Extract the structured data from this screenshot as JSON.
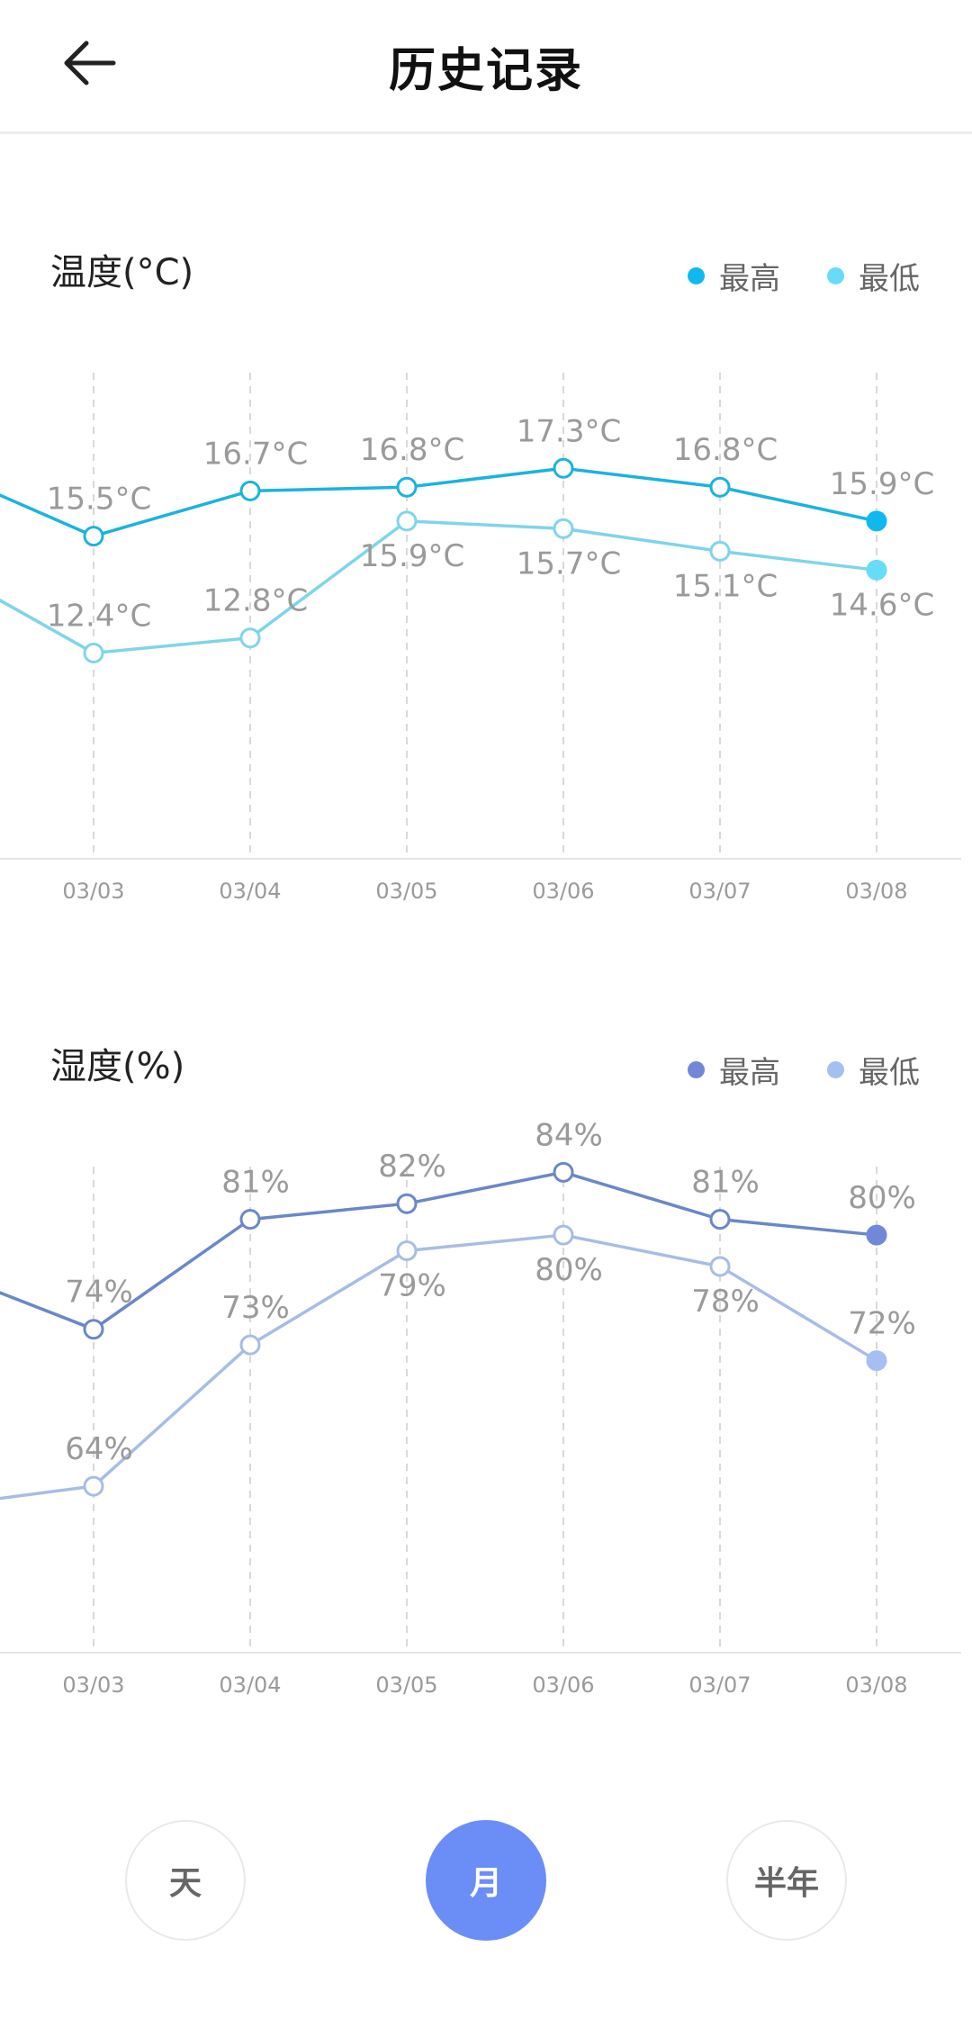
{
  "header": {
    "title": "历史记录"
  },
  "colors": {
    "temp_high": "#1ab3de",
    "temp_low": "#7fd4ec",
    "temp_high_legend": "#10b8f0",
    "temp_low_legend": "#66dcf7",
    "hum_high": "#6a87c8",
    "hum_low": "#a7bde4",
    "hum_high_legend": "#7188d8",
    "hum_low_legend": "#a6bff2",
    "active_button": "#6b8ef6"
  },
  "temperature": {
    "title": "温度(°C)",
    "legend": {
      "high": "最高",
      "low": "最低"
    }
  },
  "humidity": {
    "title": "湿度(%)",
    "legend": {
      "high": "最高",
      "low": "最低"
    }
  },
  "chart_data": [
    {
      "type": "line",
      "title": "温度(°C)",
      "categories": [
        "03/03",
        "03/04",
        "03/05",
        "03/06",
        "03/07",
        "03/08"
      ],
      "series": [
        {
          "name": "最高",
          "values": [
            15.5,
            16.7,
            16.8,
            17.3,
            16.8,
            15.9
          ],
          "labels": [
            "15.5°C",
            "16.7°C",
            "16.8°C",
            "17.3°C",
            "16.8°C",
            "15.9°C"
          ],
          "previous_value": 16.9
        },
        {
          "name": "最低",
          "values": [
            12.4,
            12.8,
            15.9,
            15.7,
            15.1,
            14.6
          ],
          "labels": [
            "12.4°C",
            "12.8°C",
            "15.9°C",
            "15.7°C",
            "15.1°C",
            "14.6°C"
          ],
          "previous_value": 14.2
        }
      ],
      "ylim": [
        10.5,
        18.5
      ],
      "grid": "vertical-dashed"
    },
    {
      "type": "line",
      "title": "湿度(%)",
      "categories": [
        "03/03",
        "03/04",
        "03/05",
        "03/06",
        "03/07",
        "03/08"
      ],
      "series": [
        {
          "name": "最高",
          "values": [
            74,
            81,
            82,
            84,
            81,
            80
          ],
          "labels": [
            "74%",
            "81%",
            "82%",
            "84%",
            "81%",
            "80%"
          ],
          "previous_value": 77
        },
        {
          "name": "最低",
          "values": [
            64,
            73,
            79,
            80,
            78,
            72
          ],
          "labels": [
            "64%",
            "73%",
            "79%",
            "80%",
            "78%",
            "72%"
          ],
          "previous_value": 63
        }
      ],
      "ylim": [
        55,
        87
      ],
      "grid": "vertical-dashed"
    }
  ],
  "period_buttons": [
    "天",
    "月",
    "半年"
  ],
  "active_period": "月"
}
